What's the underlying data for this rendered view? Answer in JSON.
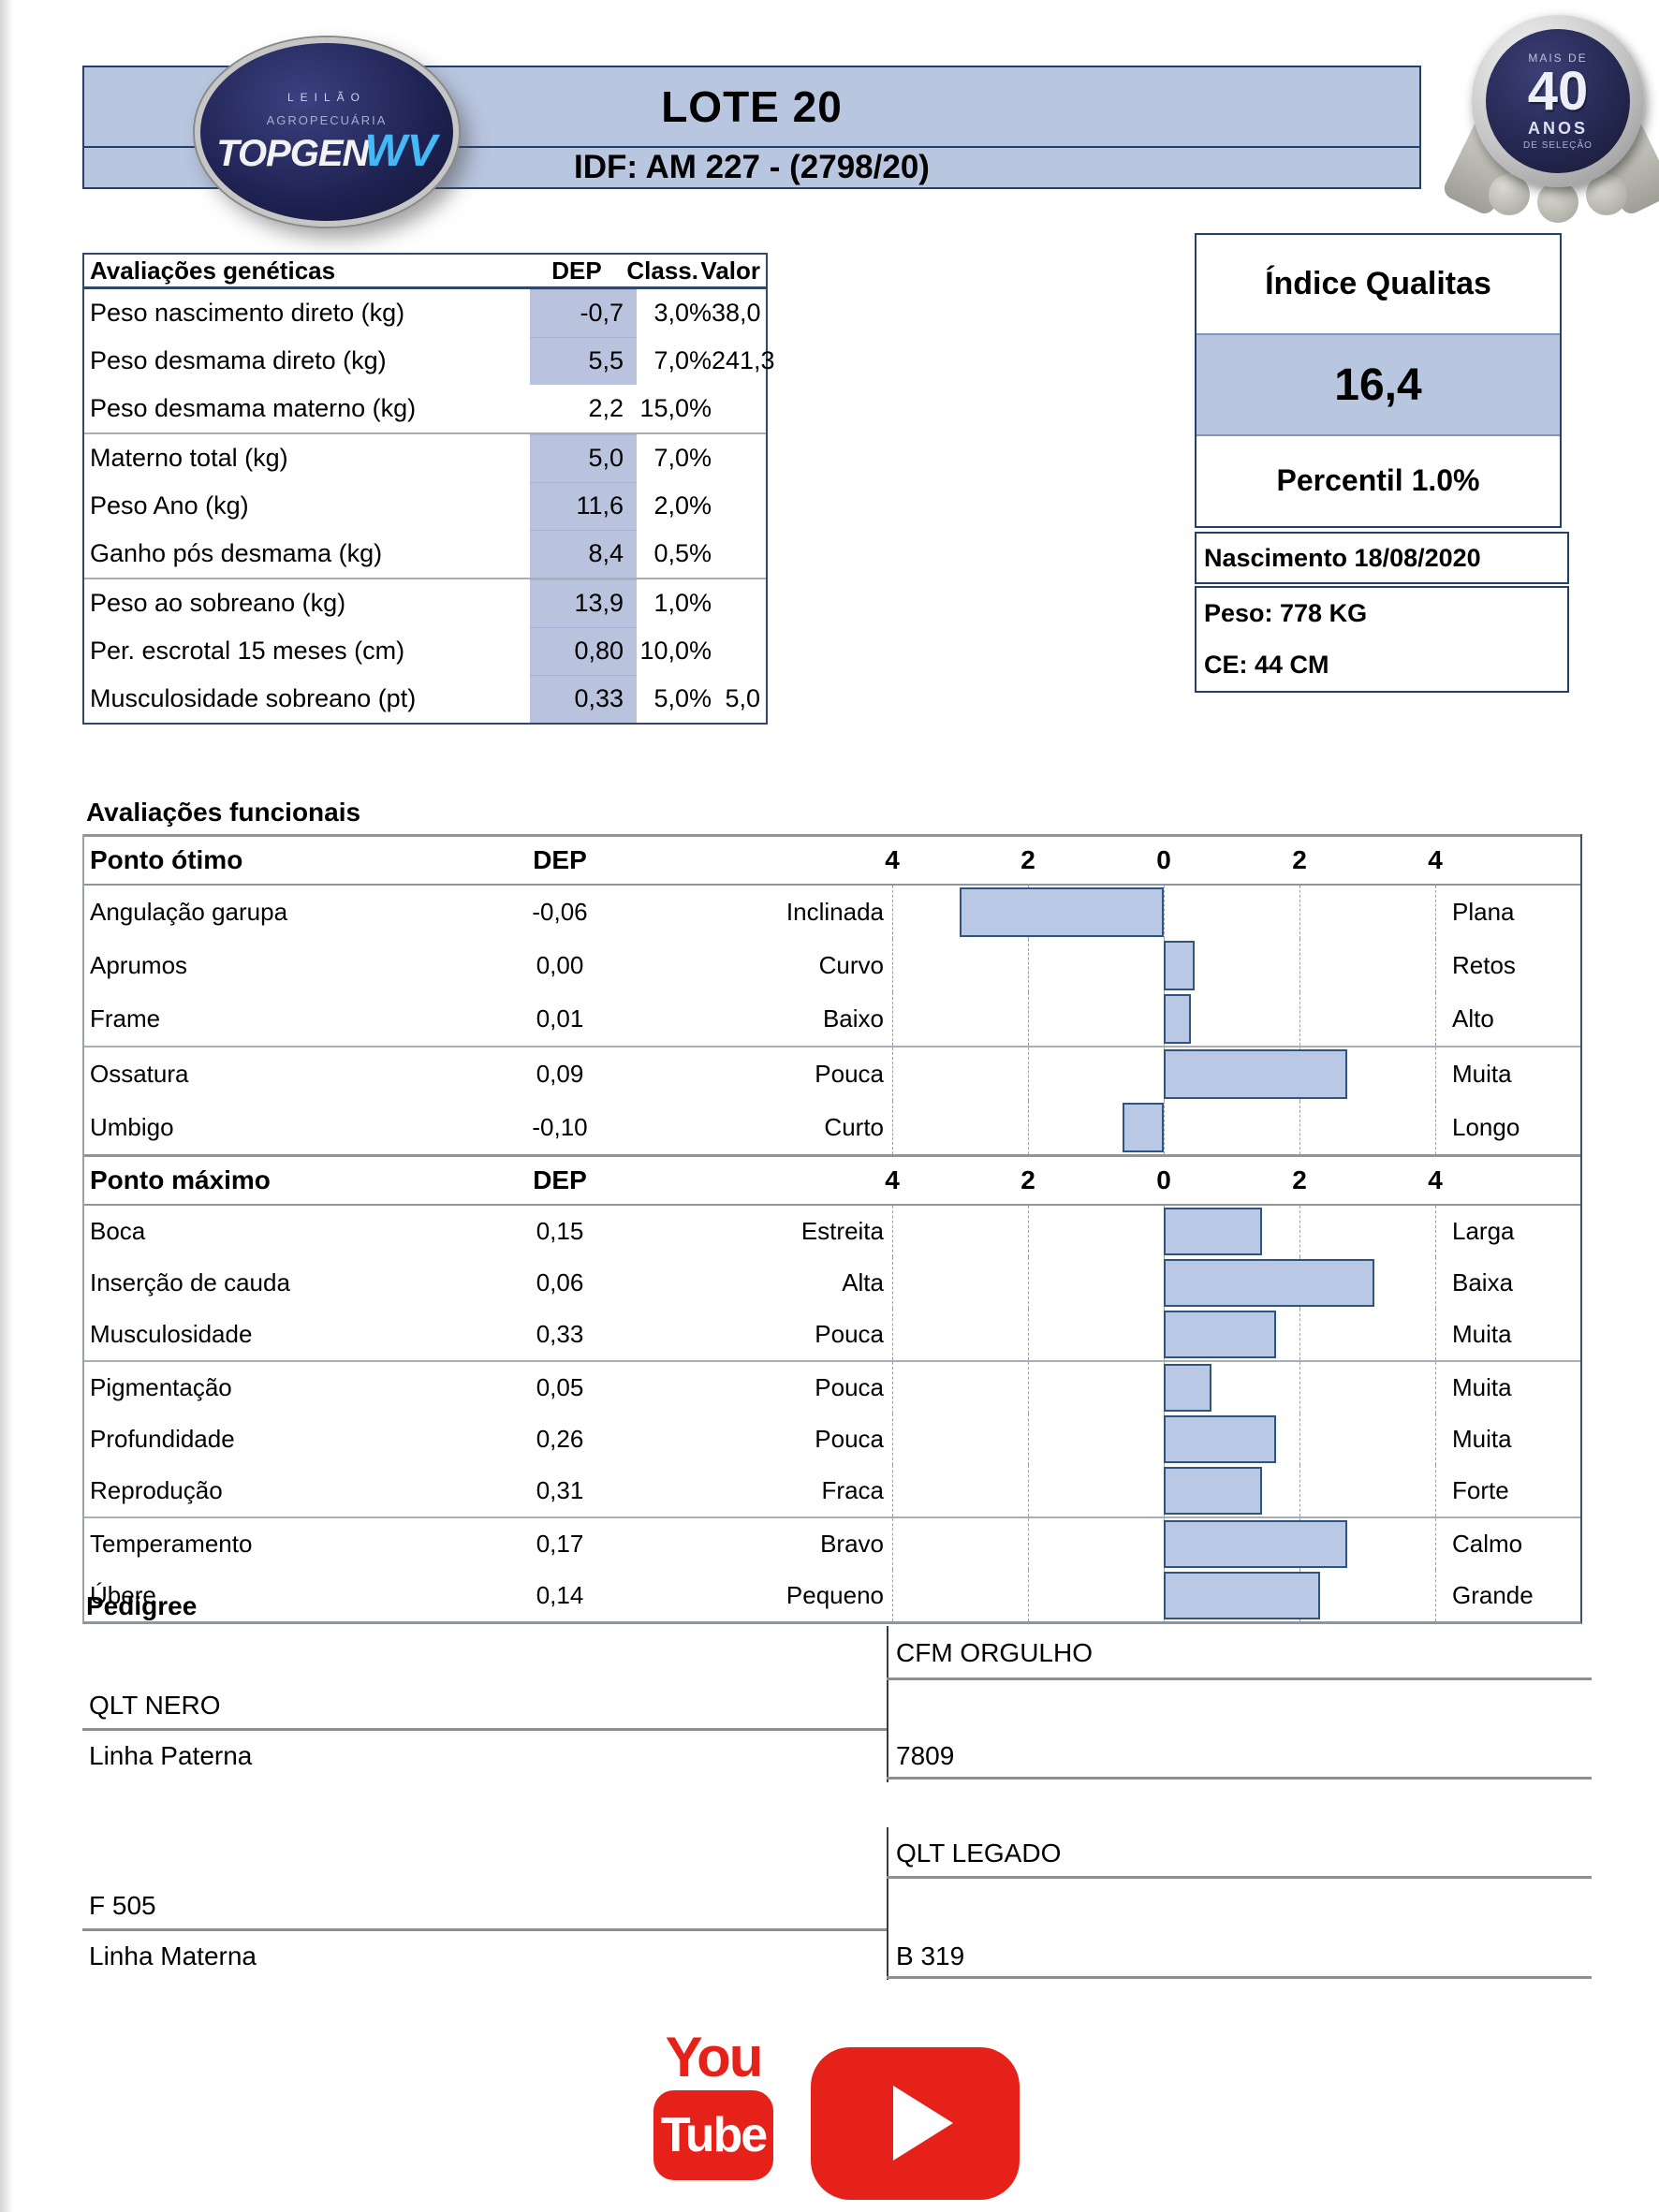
{
  "header": {
    "lot_title": "LOTE 20",
    "id_line": "IDF: AM 227 - (2798/20)",
    "logo": {
      "top": "LEILÃO",
      "mid": "AGROPECUÁRIA",
      "brand": "TOPGEN",
      "brand2": "WV"
    },
    "badge": {
      "top": "MAIS DE",
      "big": "40",
      "mid": "ANOS",
      "bottom": "DE SELEÇÃO"
    }
  },
  "genetics": {
    "title": "Avaliações genéticas",
    "col_dep": "DEP",
    "col_class": "Class.",
    "col_valor": "Valor",
    "rows": [
      {
        "label": "Peso nascimento direto (kg)",
        "dep": "-0,7",
        "class": "3,0%",
        "valor": "38,0",
        "hl": true
      },
      {
        "label": "Peso desmama direto (kg)",
        "dep": "5,5",
        "class": "7,0%",
        "valor": "241,3",
        "hl": true
      },
      {
        "label": "Peso desmama materno (kg)",
        "dep": "2,2",
        "class": "15,0%",
        "valor": "",
        "hl": false,
        "group_end": true
      },
      {
        "label": "Materno total (kg)",
        "dep": "5,0",
        "class": "7,0%",
        "valor": "",
        "hl": true
      },
      {
        "label": "Peso Ano (kg)",
        "dep": "11,6",
        "class": "2,0%",
        "valor": "",
        "hl": true
      },
      {
        "label": "Ganho pós desmama (kg)",
        "dep": "8,4",
        "class": "0,5%",
        "valor": "",
        "hl": true,
        "group_end": true
      },
      {
        "label": "Peso ao sobreano (kg)",
        "dep": "13,9",
        "class": "1,0%",
        "valor": "",
        "hl": true
      },
      {
        "label": "Per. escrotal 15 meses (cm)",
        "dep": "0,80",
        "class": "10,0%",
        "valor": "",
        "hl": true
      },
      {
        "label": "Musculosidade sobreano (pt)",
        "dep": "0,33",
        "class": "5,0%",
        "valor": "5,0",
        "hl": true
      }
    ]
  },
  "qualitas": {
    "title": "Índice Qualitas",
    "value": "16,4",
    "percentil": "Percentil 1.0%",
    "nascimento": "Nascimento 18/08/2020",
    "peso": "Peso: 778 KG",
    "ce": "CE: 44 CM"
  },
  "functional": {
    "heading": "Avaliações funcionais",
    "axis_ticks": [
      "4",
      "2",
      "0",
      "2",
      "4"
    ],
    "sections": [
      {
        "title": "Ponto ótimo",
        "dep_header": "DEP",
        "rows": [
          {
            "label": "Angulação garupa",
            "dep": "-0,06",
            "low": "Inclinada",
            "high": "Plana",
            "bar": -3.0
          },
          {
            "label": "Aprumos",
            "dep": "0,00",
            "low": "Curvo",
            "high": "Retos",
            "bar": 0.45
          },
          {
            "label": "Frame",
            "dep": "0,01",
            "low": "Baixo",
            "high": "Alto",
            "bar": 0.4,
            "group_end": true
          },
          {
            "label": "Ossatura",
            "dep": "0,09",
            "low": "Pouca",
            "high": "Muita",
            "bar": 2.7
          },
          {
            "label": "Umbigo",
            "dep": "-0,10",
            "low": "Curto",
            "high": "Longo",
            "bar": -0.6
          }
        ]
      },
      {
        "title": "Ponto máximo",
        "dep_header": "DEP",
        "rows": [
          {
            "label": "Boca",
            "dep": "0,15",
            "low": "Estreita",
            "high": "Larga",
            "bar": 1.45
          },
          {
            "label": "Inserção de cauda",
            "dep": "0,06",
            "low": "Alta",
            "high": "Baixa",
            "bar": 3.1
          },
          {
            "label": "Musculosidade",
            "dep": "0,33",
            "low": "Pouca",
            "high": "Muita",
            "bar": 1.65,
            "group_end": true
          },
          {
            "label": "Pigmentação",
            "dep": "0,05",
            "low": "Pouca",
            "high": "Muita",
            "bar": 0.7
          },
          {
            "label": "Profundidade",
            "dep": "0,26",
            "low": "Pouca",
            "high": "Muita",
            "bar": 1.65
          },
          {
            "label": "Reprodução",
            "dep": "0,31",
            "low": "Fraca",
            "high": "Forte",
            "bar": 1.45,
            "group_end": true
          },
          {
            "label": "Temperamento",
            "dep": "0,17",
            "low": "Bravo",
            "high": "Calmo",
            "bar": 2.7
          },
          {
            "label": "Úbere",
            "dep": "0,14",
            "low": "Pequeno",
            "high": "Grande",
            "bar": 2.3
          }
        ]
      }
    ]
  },
  "pedigree": {
    "heading": "Pedigree",
    "paternal": {
      "grand_sire": "CFM ORGULHO",
      "parent": "QLT NERO",
      "line_label": "Linha Paterna",
      "grand_dam": "7809"
    },
    "maternal": {
      "grand_sire": "QLT LEGADO",
      "parent": "F 505",
      "line_label": "Linha Materna",
      "grand_dam": "B 319"
    }
  },
  "footer": {
    "youtube_top": "You",
    "youtube_bottom": "Tube"
  },
  "colors": {
    "band_blue": "#b9c6e0",
    "navy_border": "#25406b",
    "highlight_cell": "#b9c3de",
    "bar_fill": "#b9c8e4",
    "bar_border": "#2f5480",
    "youtube_red": "#e6211a"
  },
  "chart_data": [
    {
      "type": "bar",
      "orientation": "horizontal",
      "title": "Ponto ótimo",
      "categories": [
        "Angulação garupa",
        "Aprumos",
        "Frame",
        "Ossatura",
        "Umbigo"
      ],
      "dep_values": [
        -0.06,
        0.0,
        0.01,
        0.09,
        -0.1
      ],
      "values": [
        -3.0,
        0.45,
        0.4,
        2.7,
        -0.6
      ],
      "left_labels": [
        "Inclinada",
        "Curvo",
        "Baixo",
        "Pouca",
        "Curto"
      ],
      "right_labels": [
        "Plana",
        "Retos",
        "Alto",
        "Muita",
        "Longo"
      ],
      "xlim": [
        -4,
        4
      ],
      "axis_tick_labels": [
        "4",
        "2",
        "0",
        "2",
        "4"
      ],
      "grid": "dashed-vertical",
      "legend": "none"
    },
    {
      "type": "bar",
      "orientation": "horizontal",
      "title": "Ponto máximo",
      "categories": [
        "Boca",
        "Inserção de cauda",
        "Musculosidade",
        "Pigmentação",
        "Profundidade",
        "Reprodução",
        "Temperamento",
        "Úbere"
      ],
      "dep_values": [
        0.15,
        0.06,
        0.33,
        0.05,
        0.26,
        0.31,
        0.17,
        0.14
      ],
      "values": [
        1.45,
        3.1,
        1.65,
        0.7,
        1.65,
        1.45,
        2.7,
        2.3
      ],
      "left_labels": [
        "Estreita",
        "Alta",
        "Pouca",
        "Pouca",
        "Pouca",
        "Fraca",
        "Bravo",
        "Pequeno"
      ],
      "right_labels": [
        "Larga",
        "Baixa",
        "Muita",
        "Muita",
        "Muita",
        "Forte",
        "Calmo",
        "Grande"
      ],
      "xlim": [
        -4,
        4
      ],
      "axis_tick_labels": [
        "4",
        "2",
        "0",
        "2",
        "4"
      ],
      "grid": "dashed-vertical",
      "legend": "none"
    }
  ]
}
